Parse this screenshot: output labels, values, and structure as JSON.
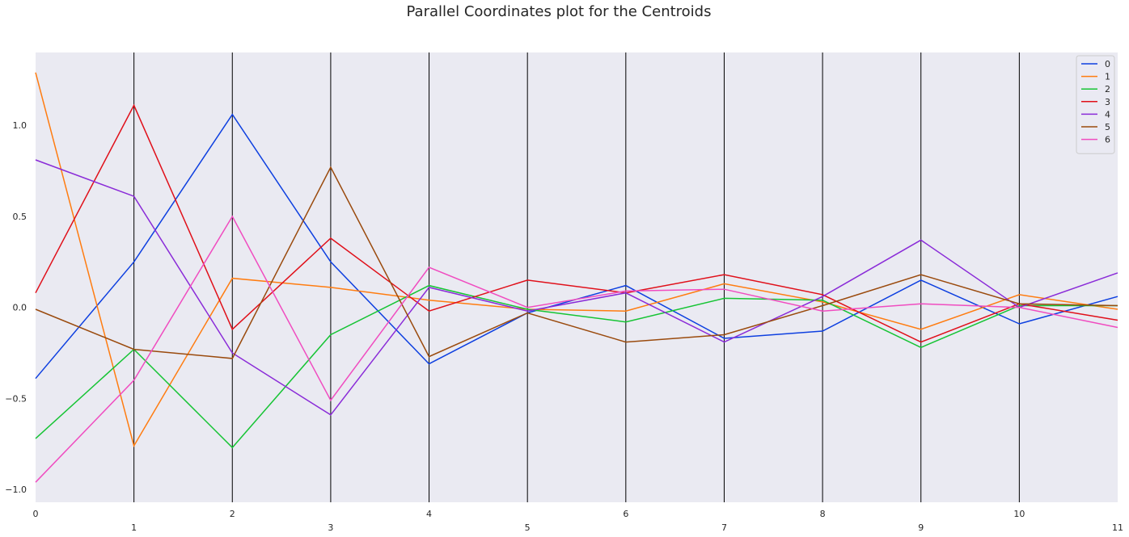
{
  "chart_data": {
    "type": "line",
    "title": "Parallel Coordinates plot for the Centroids",
    "xlabel": "",
    "ylabel": "",
    "x": [
      0,
      1,
      2,
      3,
      4,
      5,
      6,
      7,
      8,
      9,
      10,
      11
    ],
    "x_tick_labels": [
      "0",
      "1",
      "2",
      "3",
      "4",
      "5",
      "6",
      "7",
      "8",
      "9",
      "10",
      "11"
    ],
    "y_ticks": [
      -1.0,
      -0.5,
      0.0,
      0.5,
      1.0
    ],
    "y_tick_labels": [
      "−1.0",
      "−0.5",
      "0.0",
      "0.5",
      "1.0"
    ],
    "ylim": [
      -1.07,
      1.4
    ],
    "xlim": [
      0,
      11
    ],
    "grid": "vertical lines at each coordinate",
    "background": "#eaeaf2",
    "legend_position": "top-right",
    "series": [
      {
        "name": "0",
        "color": "#0d3fe0",
        "values": [
          -0.39,
          0.25,
          1.06,
          0.25,
          -0.31,
          -0.03,
          0.12,
          -0.17,
          -0.13,
          0.15,
          -0.09,
          0.06
        ]
      },
      {
        "name": "1",
        "color": "#ff7c10",
        "values": [
          1.29,
          -0.76,
          0.16,
          0.11,
          0.04,
          -0.01,
          -0.02,
          0.13,
          0.03,
          -0.12,
          0.07,
          -0.01
        ]
      },
      {
        "name": "2",
        "color": "#16c434",
        "values": [
          -0.72,
          -0.23,
          -0.77,
          -0.15,
          0.12,
          -0.01,
          -0.08,
          0.05,
          0.04,
          -0.22,
          0.01,
          0.01
        ]
      },
      {
        "name": "3",
        "color": "#e0101a",
        "values": [
          0.08,
          1.11,
          -0.12,
          0.38,
          -0.02,
          0.15,
          0.08,
          0.18,
          0.07,
          -0.19,
          0.02,
          -0.07
        ]
      },
      {
        "name": "4",
        "color": "#8a2bd8",
        "values": [
          0.81,
          0.61,
          -0.25,
          -0.59,
          0.11,
          -0.02,
          0.08,
          -0.19,
          0.06,
          0.37,
          0.0,
          0.19
        ]
      },
      {
        "name": "5",
        "color": "#9a4a0d",
        "values": [
          -0.01,
          -0.23,
          -0.28,
          0.77,
          -0.27,
          -0.03,
          -0.19,
          -0.15,
          0.01,
          0.18,
          0.02,
          0.01
        ]
      },
      {
        "name": "6",
        "color": "#f04cc0",
        "values": [
          -0.96,
          -0.4,
          0.5,
          -0.51,
          0.22,
          0.0,
          0.09,
          0.1,
          -0.02,
          0.02,
          0.0,
          -0.11
        ]
      }
    ]
  }
}
